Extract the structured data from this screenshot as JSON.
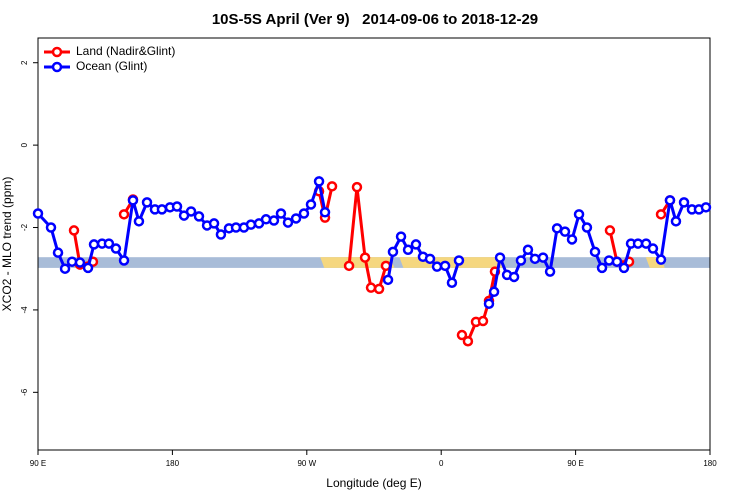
{
  "chart_data": {
    "type": "line",
    "title": "10S-5S April (Ver 9)   2014-09-06 to 2018-12-29",
    "xlabel": "Longitude (deg E)",
    "ylabel": "XCO2 - MLO trend (ppm)",
    "xlim": [
      90,
      540
    ],
    "ylim": [
      -7.4,
      2.6
    ],
    "xticks": [
      {
        "value": 90,
        "label": "90 E"
      },
      180,
      {
        "value": 270,
        "label": "90 W"
      },
      {
        "value": 360,
        "label": "0"
      },
      {
        "value": 450,
        "label": "90 E"
      },
      {
        "value": 540,
        "label": "180"
      }
    ],
    "yticks": [
      -6,
      -4,
      -2,
      0,
      2
    ],
    "legend": "top-left",
    "band": {
      "range": [
        -2.98,
        -2.72
      ],
      "color": "#a8bcd8",
      "land_color": "#f5d77f",
      "land_spans": [
        [
          279,
          326
        ],
        [
          332,
          399
        ],
        [
          497,
          507
        ]
      ]
    },
    "series": [
      {
        "name": "Land (Nadir&Glint)",
        "color": "#ff0000",
        "x": [
          114.1,
          118.1,
          126.8,
          137,
          147.6,
          153.6,
          215,
          278.2,
          282.2,
          286.9,
          292,
          298.3,
          303.6,
          309.0,
          313.0,
          318.4,
          323.0,
          348,
          373.9,
          377.9,
          383.3,
          388.0,
          392.0,
          396.0,
          430,
          473.0,
          477.7,
          485.8,
          495,
          507.2,
          513.2
        ],
        "values": [
          -2.07,
          -2.9,
          -2.83,
          null,
          -1.68,
          -1.32,
          null,
          -1.12,
          -1.76,
          -1.0,
          null,
          -2.93,
          -1.02,
          -2.73,
          -3.46,
          -3.49,
          -2.93,
          null,
          -4.61,
          -4.76,
          -4.29,
          -4.27,
          -3.78,
          -3.07,
          null,
          -2.07,
          -2.83,
          -2.83,
          null,
          -1.68,
          -1.34
        ]
      },
      {
        "name": "Ocean (Glint)",
        "color": "#0000ff",
        "x": [
          90,
          98.7,
          103.4,
          108.1,
          112.8,
          118.1,
          123.5,
          127.5,
          132.9,
          137.5,
          142.2,
          147.6,
          153.6,
          157.6,
          163.0,
          168.3,
          173.0,
          178.4,
          183.1,
          187.8,
          192.5,
          197.8,
          203.2,
          207.9,
          212.5,
          217.9,
          222.6,
          227.9,
          232.6,
          238.0,
          242.7,
          248.0,
          252.7,
          257.4,
          262.8,
          268.1,
          272.8,
          278.2,
          282.2,
          303,
          324.4,
          327.7,
          333.1,
          337.8,
          343.1,
          347.8,
          352.5,
          357.2,
          362.6,
          367.2,
          371.9,
          382,
          392.0,
          395.4,
          399.4,
          404.1,
          408.8,
          413.4,
          418.1,
          422.8,
          428.2,
          432.9,
          437.6,
          442.9,
          447.6,
          452.3,
          457.6,
          463.0,
          467.7,
          472.4,
          477.7,
          482.4,
          487.1,
          491.8,
          497.2,
          501.8,
          507.2,
          513.2,
          517.2,
          522.6,
          527.9,
          532.6,
          537.3
        ],
        "values": [
          -1.66,
          -2.0,
          -2.61,
          -3.0,
          -2.83,
          -2.85,
          -2.98,
          -2.41,
          -2.39,
          -2.39,
          -2.51,
          -2.8,
          -1.34,
          -1.85,
          -1.39,
          -1.56,
          -1.56,
          -1.51,
          -1.49,
          -1.71,
          -1.61,
          -1.73,
          -1.95,
          -1.9,
          -2.17,
          -2.02,
          -2.0,
          -2.0,
          -1.93,
          -1.9,
          -1.8,
          -1.83,
          -1.66,
          -1.88,
          -1.78,
          -1.66,
          -1.44,
          -0.88,
          -1.63,
          null,
          -3.27,
          -2.59,
          -2.22,
          -2.54,
          -2.41,
          -2.71,
          -2.76,
          -2.95,
          -2.93,
          -3.34,
          -2.8,
          null,
          -3.85,
          -3.56,
          -2.73,
          -3.15,
          -3.2,
          -2.8,
          -2.54,
          -2.76,
          -2.73,
          -3.07,
          -2.02,
          -2.1,
          -2.29,
          -1.68,
          -2.0,
          -2.59,
          -2.98,
          -2.8,
          -2.83,
          -2.98,
          -2.39,
          -2.39,
          -2.39,
          -2.51,
          -2.78,
          -1.34,
          -1.85,
          -1.39,
          -1.56,
          -1.56,
          -1.51
        ]
      }
    ]
  }
}
